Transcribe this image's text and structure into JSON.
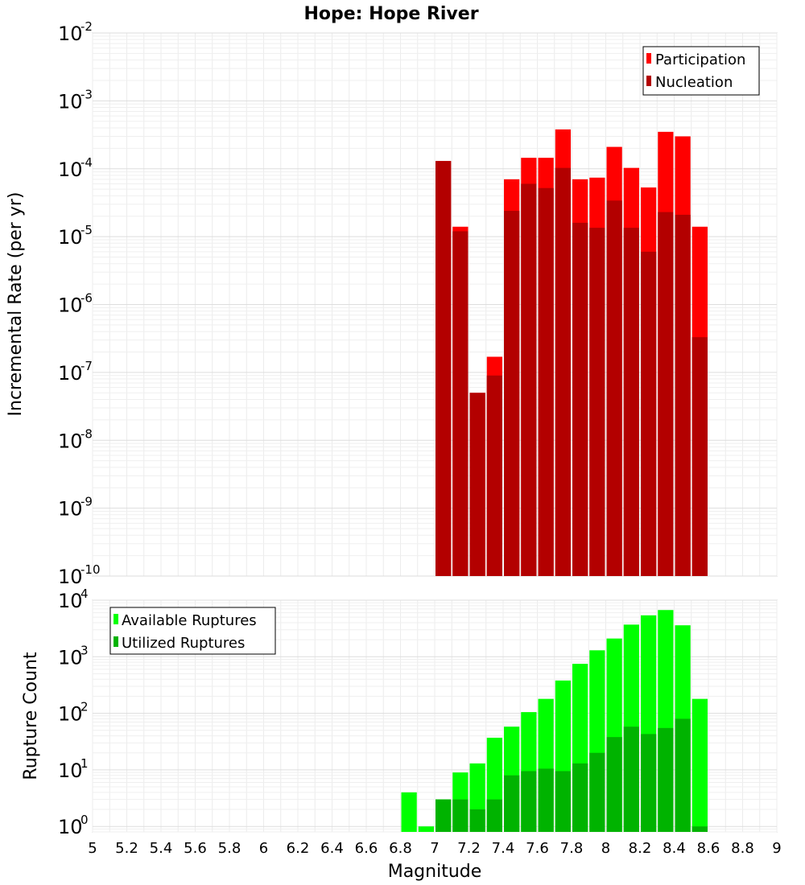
{
  "chart_data": [
    {
      "type": "bar",
      "title": "Hope: Hope River",
      "xlabel": "Magnitude",
      "ylabel": "Incremental Rate (per yr)",
      "yscale": "log",
      "ylim": [
        1e-10,
        0.01
      ],
      "xlim": [
        5,
        9
      ],
      "bin_width": 0.1,
      "yticks": [
        {
          "base": "10",
          "exp": "-2",
          "value": 0.01
        },
        {
          "base": "10",
          "exp": "-3",
          "value": 0.001
        },
        {
          "base": "10",
          "exp": "-4",
          "value": 0.0001
        },
        {
          "base": "10",
          "exp": "-5",
          "value": 1e-05
        },
        {
          "base": "10",
          "exp": "-6",
          "value": 1e-06
        },
        {
          "base": "10",
          "exp": "-7",
          "value": 1e-07
        },
        {
          "base": "10",
          "exp": "-8",
          "value": 1e-08
        },
        {
          "base": "10",
          "exp": "-9",
          "value": 1e-09
        },
        {
          "base": "10",
          "exp": "-10",
          "value": 1e-10
        }
      ],
      "grid": true,
      "legend_position": "top-right",
      "x": [
        7.05,
        7.15,
        7.25,
        7.35,
        7.45,
        7.55,
        7.65,
        7.75,
        7.85,
        7.95,
        8.05,
        8.15,
        8.25,
        8.35,
        8.45,
        8.55
      ],
      "series": [
        {
          "name": "Participation",
          "color": "#ff0000",
          "values": [
            0.00013,
            1.4e-05,
            5e-08,
            1.7e-07,
            7e-05,
            0.000145,
            0.000145,
            0.00038,
            7e-05,
            7.4e-05,
            0.00021,
            0.000103,
            5.3e-05,
            0.00035,
            0.0003,
            1.4e-05
          ]
        },
        {
          "name": "Nucleation",
          "color": "#b30000",
          "values": [
            0.00013,
            1.2e-05,
            5e-08,
            9e-08,
            2.4e-05,
            6e-05,
            5.2e-05,
            0.000103,
            1.6e-05,
            1.35e-05,
            3.4e-05,
            1.35e-05,
            6e-06,
            2.3e-05,
            2.1e-05,
            3.3e-07
          ]
        }
      ]
    },
    {
      "type": "bar",
      "xlabel": "Magnitude",
      "ylabel": "Rupture Count",
      "yscale": "log",
      "ylim": [
        0.8,
        10000
      ],
      "xlim": [
        5,
        9
      ],
      "bin_width": 0.1,
      "yticks": [
        {
          "base": "10",
          "exp": "4",
          "value": 10000
        },
        {
          "base": "10",
          "exp": "3",
          "value": 1000
        },
        {
          "base": "10",
          "exp": "2",
          "value": 100
        },
        {
          "base": "10",
          "exp": "1",
          "value": 10
        },
        {
          "base": "10",
          "exp": "0",
          "value": 1
        }
      ],
      "xticks": [
        "5",
        "5.2",
        "5.4",
        "5.6",
        "5.8",
        "6",
        "6.2",
        "6.4",
        "6.6",
        "6.8",
        "7",
        "7.2",
        "7.4",
        "7.6",
        "7.8",
        "8",
        "8.2",
        "8.4",
        "8.6",
        "8.8",
        "9"
      ],
      "grid": true,
      "legend_position": "top-left",
      "x": [
        6.85,
        6.95,
        7.05,
        7.15,
        7.25,
        7.35,
        7.45,
        7.55,
        7.65,
        7.75,
        7.85,
        7.95,
        8.05,
        8.15,
        8.25,
        8.35,
        8.45,
        8.55
      ],
      "series": [
        {
          "name": "Available Ruptures",
          "color": "#00ff00",
          "values": [
            4,
            1,
            3,
            9,
            13,
            37,
            58,
            105,
            180,
            380,
            750,
            1300,
            2100,
            3700,
            5400,
            6700,
            3600,
            180
          ]
        },
        {
          "name": "Utilized Ruptures",
          "color": "#00b300",
          "values": [
            null,
            null,
            3,
            3,
            2,
            3,
            8,
            9.5,
            10.5,
            9.5,
            13,
            20,
            38,
            58,
            43,
            55,
            80,
            1
          ]
        }
      ]
    }
  ]
}
